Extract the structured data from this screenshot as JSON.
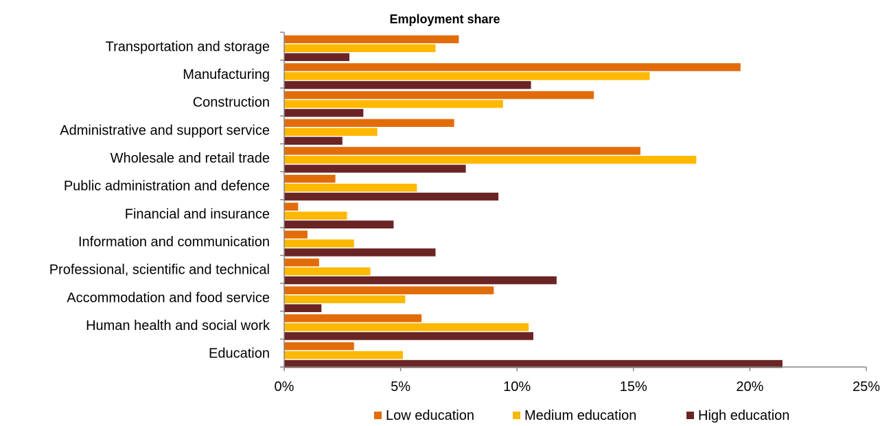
{
  "chart_data": {
    "type": "bar",
    "orientation": "horizontal",
    "title": "Employment share",
    "xlabel": "",
    "ylabel": "",
    "xlim": [
      0,
      25
    ],
    "x_ticks": [
      "0%",
      "5%",
      "10%",
      "15%",
      "20%",
      "25%"
    ],
    "grid": false,
    "legend_position": "bottom",
    "categories": [
      "Transportation and storage",
      "Manufacturing",
      "Construction",
      "Administrative and support service",
      "Wholesale and retail trade",
      "Public administration and defence",
      "Financial and insurance",
      "Information and communication",
      "Professional, scientific and technical",
      "Accommodation and food service",
      "Human health and social work",
      "Education"
    ],
    "series": [
      {
        "name": "Low education",
        "color": "#E36C0A",
        "values": [
          7.5,
          19.6,
          13.3,
          7.3,
          15.3,
          2.2,
          0.6,
          1.0,
          1.5,
          9.0,
          5.9,
          3.0
        ]
      },
      {
        "name": "Medium education",
        "color": "#FFB800",
        "values": [
          6.5,
          15.7,
          9.4,
          4.0,
          17.7,
          5.7,
          2.7,
          3.0,
          3.7,
          5.2,
          10.5,
          5.1
        ]
      },
      {
        "name": "High education",
        "color": "#6B2424",
        "values": [
          2.8,
          10.6,
          3.4,
          2.5,
          7.8,
          9.2,
          4.7,
          6.5,
          11.7,
          1.6,
          10.7,
          21.4
        ]
      }
    ]
  }
}
